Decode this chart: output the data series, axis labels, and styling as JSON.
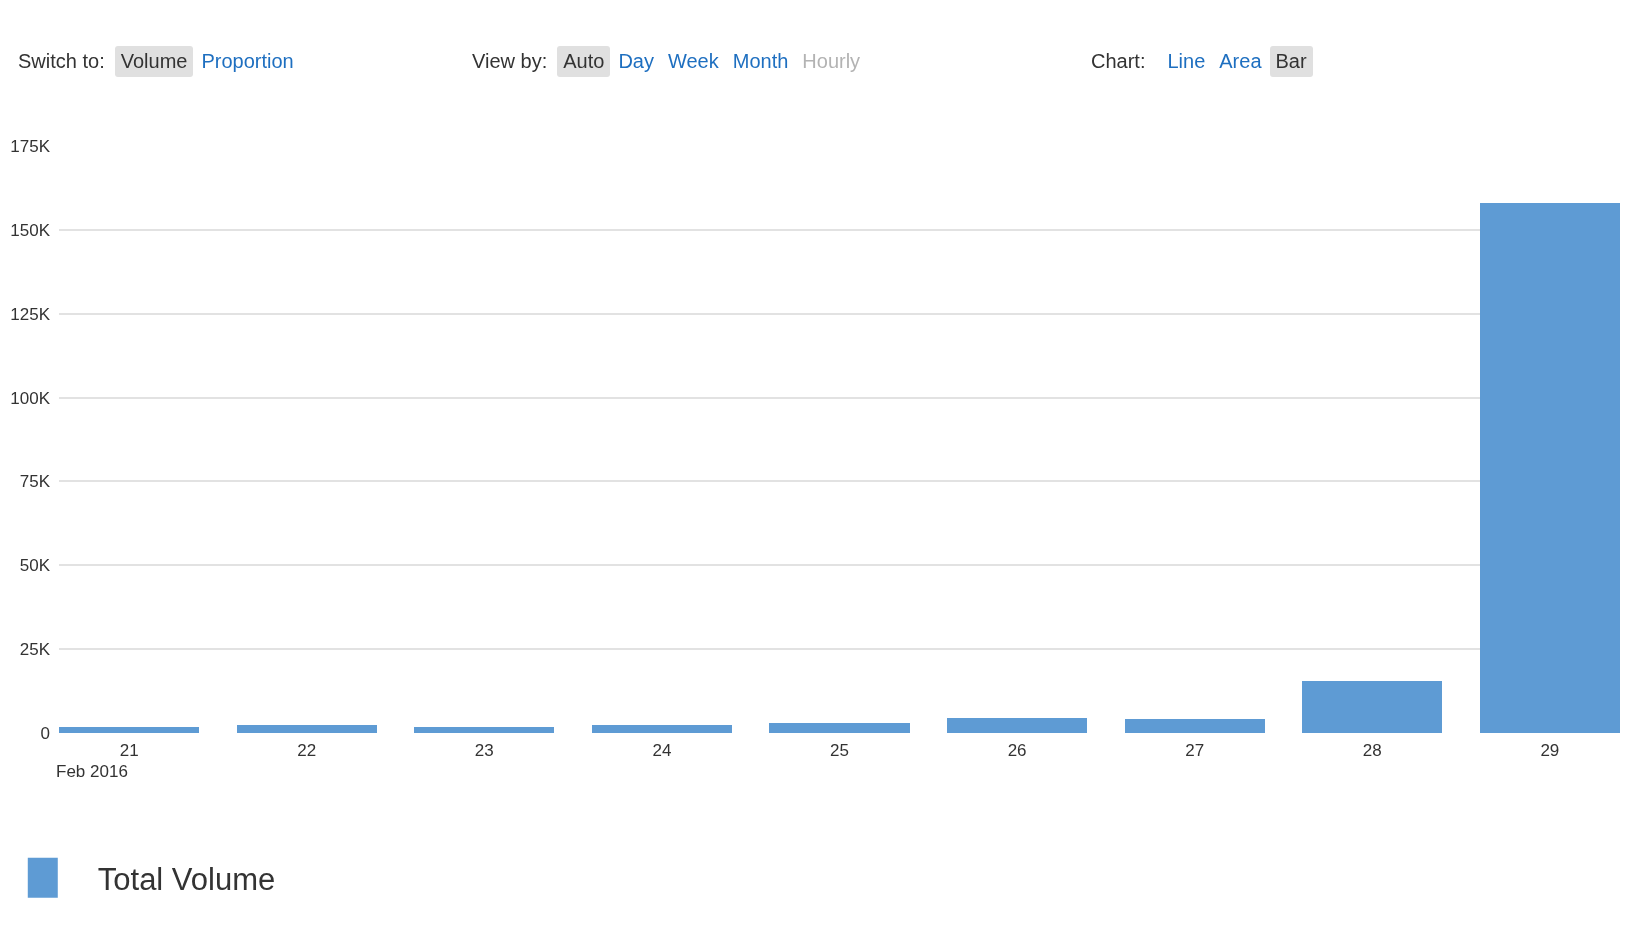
{
  "chart_data": {
    "type": "bar",
    "annotations": [
      "Switch to:",
      "Volume",
      "Proportion",
      "View by:",
      "Auto",
      "Day",
      "Week",
      "Month",
      "Hourly",
      "Chart:",
      "Line",
      "Area",
      "Bar"
    ],
    "xlabel": "Feb 2016",
    "categories": [
      "21",
      "22",
      "23",
      "24",
      "25",
      "26",
      "27",
      "28",
      "29"
    ],
    "series": [
      {
        "name": "Total Volume",
        "color": "#5e9bd4",
        "values": [
          1900,
          2400,
          1900,
          2400,
          3000,
          4400,
          4300,
          15500,
          158000
        ]
      }
    ],
    "ylim": [
      0,
      175000
    ],
    "yticks": [
      0,
      {
        "value": 25000,
        "label": "25K"
      },
      {
        "value": 50000,
        "label": "50K"
      },
      {
        "value": 75000,
        "label": "75K"
      },
      {
        "value": 100000,
        "label": "100K"
      },
      {
        "value": 125000,
        "label": "125K"
      },
      {
        "value": 150000,
        "label": "150K"
      },
      {
        "value": 175000,
        "label": "175K"
      }
    ],
    "grid": "y",
    "legend": "bottom left"
  }
}
